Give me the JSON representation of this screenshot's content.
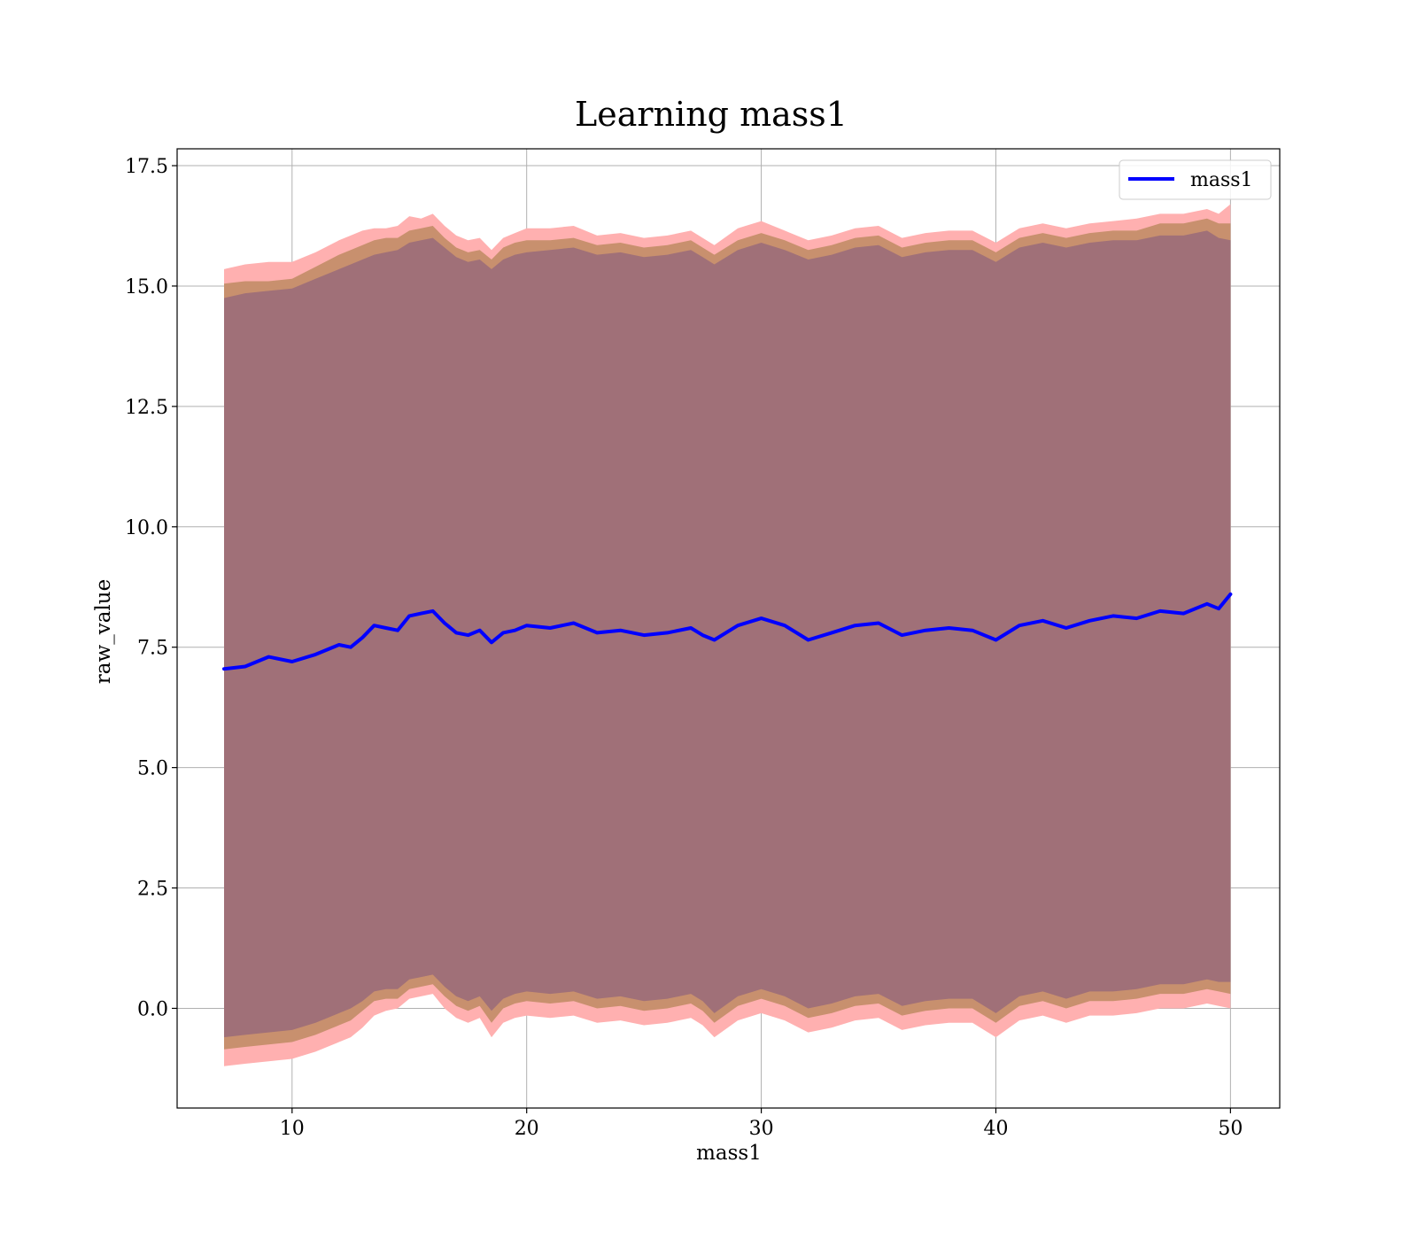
{
  "chart_data": {
    "type": "line",
    "title": "Learning mass1",
    "xlabel": "mass1",
    "ylabel": "raw_value",
    "xlim": [
      5.1,
      52.1
    ],
    "ylim": [
      -2.07,
      17.85
    ],
    "xticks": [
      10,
      20,
      30,
      40,
      50
    ],
    "xtick_labels": [
      "10",
      "20",
      "30",
      "40",
      "50"
    ],
    "yticks": [
      0.0,
      2.5,
      5.0,
      7.5,
      10.0,
      12.5,
      15.0,
      17.5
    ],
    "ytick_labels": [
      "0.0",
      "2.5",
      "5.0",
      "7.5",
      "10.0",
      "12.5",
      "15.0",
      "17.5"
    ],
    "grid": true,
    "legend": {
      "position": "top-right",
      "entries": [
        "mass1"
      ]
    },
    "colors": {
      "line": "#0000ff",
      "band_outer": "#ffb0b0",
      "band_middle": "#c8906e",
      "band_inner": "#a07078",
      "grid": "#b0b0b0"
    },
    "series": [
      {
        "name": "mass1",
        "x": [
          7.1,
          8.0,
          9.0,
          10.0,
          11.0,
          12.0,
          12.5,
          13.0,
          13.5,
          14.0,
          14.5,
          15.0,
          15.5,
          16.0,
          16.5,
          17.0,
          17.5,
          18.0,
          18.5,
          19.0,
          19.5,
          20.0,
          21.0,
          22.0,
          23.0,
          24.0,
          25.0,
          26.0,
          27.0,
          27.5,
          28.0,
          29.0,
          30.0,
          31.0,
          32.0,
          33.0,
          34.0,
          35.0,
          36.0,
          37.0,
          38.0,
          39.0,
          40.0,
          41.0,
          42.0,
          43.0,
          44.0,
          45.0,
          46.0,
          47.0,
          48.0,
          49.0,
          49.5,
          50.0
        ],
        "y": [
          7.05,
          7.1,
          7.3,
          7.2,
          7.35,
          7.55,
          7.5,
          7.7,
          7.95,
          7.9,
          7.85,
          8.15,
          8.2,
          8.25,
          8.0,
          7.8,
          7.75,
          7.85,
          7.6,
          7.8,
          7.85,
          7.95,
          7.9,
          8.0,
          7.8,
          7.85,
          7.75,
          7.8,
          7.9,
          7.75,
          7.65,
          7.95,
          8.1,
          7.95,
          7.65,
          7.8,
          7.95,
          8.0,
          7.75,
          7.85,
          7.9,
          7.85,
          7.65,
          7.95,
          8.05,
          7.9,
          8.05,
          8.15,
          8.1,
          8.25,
          8.2,
          8.4,
          8.3,
          8.6
        ],
        "band_outer_upper": [
          15.35,
          15.45,
          15.5,
          15.5,
          15.7,
          15.95,
          16.05,
          16.15,
          16.2,
          16.2,
          16.25,
          16.45,
          16.4,
          16.5,
          16.25,
          16.05,
          15.95,
          16.0,
          15.75,
          16.0,
          16.1,
          16.2,
          16.2,
          16.25,
          16.05,
          16.1,
          16.0,
          16.05,
          16.15,
          16.0,
          15.85,
          16.2,
          16.35,
          16.15,
          15.95,
          16.05,
          16.2,
          16.25,
          16.0,
          16.1,
          16.15,
          16.15,
          15.9,
          16.2,
          16.3,
          16.2,
          16.3,
          16.35,
          16.4,
          16.5,
          16.5,
          16.6,
          16.5,
          16.7
        ],
        "band_outer_lower": [
          -1.2,
          -1.15,
          -1.1,
          -1.05,
          -0.9,
          -0.7,
          -0.6,
          -0.4,
          -0.15,
          -0.05,
          0.0,
          0.2,
          0.25,
          0.3,
          0.0,
          -0.2,
          -0.3,
          -0.2,
          -0.6,
          -0.3,
          -0.2,
          -0.15,
          -0.2,
          -0.15,
          -0.3,
          -0.25,
          -0.35,
          -0.3,
          -0.2,
          -0.35,
          -0.6,
          -0.25,
          -0.1,
          -0.25,
          -0.5,
          -0.4,
          -0.25,
          -0.2,
          -0.45,
          -0.35,
          -0.3,
          -0.3,
          -0.6,
          -0.25,
          -0.15,
          -0.3,
          -0.15,
          -0.15,
          -0.1,
          0.0,
          0.0,
          0.1,
          0.05,
          0.0
        ],
        "band_middle_upper": [
          15.05,
          15.1,
          15.1,
          15.15,
          15.4,
          15.65,
          15.75,
          15.85,
          15.95,
          16.0,
          16.0,
          16.15,
          16.2,
          16.25,
          16.0,
          15.8,
          15.7,
          15.75,
          15.55,
          15.8,
          15.9,
          15.95,
          15.95,
          16.0,
          15.85,
          15.9,
          15.8,
          15.85,
          15.95,
          15.8,
          15.65,
          15.95,
          16.1,
          15.95,
          15.75,
          15.85,
          16.0,
          16.05,
          15.8,
          15.9,
          15.95,
          15.95,
          15.7,
          16.0,
          16.1,
          16.0,
          16.1,
          16.15,
          16.15,
          16.3,
          16.3,
          16.4,
          16.3,
          16.3
        ],
        "band_middle_lower": [
          -0.85,
          -0.8,
          -0.75,
          -0.7,
          -0.55,
          -0.35,
          -0.25,
          -0.05,
          0.15,
          0.2,
          0.2,
          0.4,
          0.45,
          0.5,
          0.25,
          0.05,
          -0.05,
          0.05,
          -0.3,
          0.0,
          0.1,
          0.15,
          0.1,
          0.15,
          0.0,
          0.05,
          -0.05,
          0.0,
          0.1,
          -0.05,
          -0.3,
          0.05,
          0.2,
          0.05,
          -0.2,
          -0.1,
          0.05,
          0.1,
          -0.15,
          -0.05,
          0.0,
          0.0,
          -0.3,
          0.05,
          0.15,
          0.0,
          0.15,
          0.15,
          0.2,
          0.3,
          0.3,
          0.4,
          0.35,
          0.3
        ],
        "band_inner_upper": [
          14.75,
          14.85,
          14.9,
          14.95,
          15.15,
          15.35,
          15.45,
          15.55,
          15.65,
          15.7,
          15.75,
          15.9,
          15.95,
          16.0,
          15.8,
          15.6,
          15.5,
          15.55,
          15.35,
          15.55,
          15.65,
          15.7,
          15.75,
          15.8,
          15.65,
          15.7,
          15.6,
          15.65,
          15.75,
          15.6,
          15.45,
          15.75,
          15.9,
          15.75,
          15.55,
          15.65,
          15.8,
          15.85,
          15.6,
          15.7,
          15.75,
          15.75,
          15.5,
          15.8,
          15.9,
          15.8,
          15.9,
          15.95,
          15.95,
          16.05,
          16.05,
          16.15,
          16.0,
          15.95
        ],
        "band_inner_lower": [
          -0.6,
          -0.55,
          -0.5,
          -0.45,
          -0.3,
          -0.1,
          0.0,
          0.15,
          0.35,
          0.4,
          0.4,
          0.6,
          0.65,
          0.7,
          0.45,
          0.25,
          0.15,
          0.25,
          -0.05,
          0.2,
          0.3,
          0.35,
          0.3,
          0.35,
          0.2,
          0.25,
          0.15,
          0.2,
          0.3,
          0.15,
          -0.1,
          0.25,
          0.4,
          0.25,
          0.0,
          0.1,
          0.25,
          0.3,
          0.05,
          0.15,
          0.2,
          0.2,
          -0.1,
          0.25,
          0.35,
          0.2,
          0.35,
          0.35,
          0.4,
          0.5,
          0.5,
          0.6,
          0.55,
          0.55
        ]
      }
    ]
  }
}
